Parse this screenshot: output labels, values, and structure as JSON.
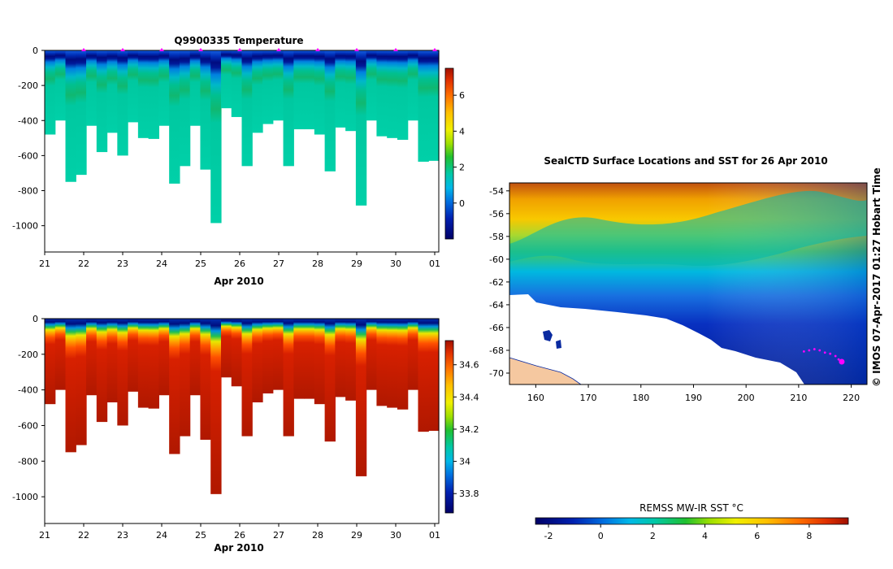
{
  "chart_data": [
    {
      "type": "heatmap",
      "title": "Q9900335  Temperature",
      "xlabel": "Apr 2010",
      "ylabel": "",
      "x_ticks": [
        "21",
        "22",
        "23",
        "24",
        "25",
        "26",
        "27",
        "28",
        "29",
        "30",
        "01"
      ],
      "y_ticks": [
        0,
        -200,
        -400,
        -600,
        -800,
        -1000
      ],
      "ylim": [
        -1150,
        0
      ],
      "colorbar": {
        "ticks": [
          6,
          4,
          2,
          0
        ],
        "labels": [
          "6",
          "4",
          "2",
          "0"
        ],
        "range": [
          -2,
          7.5
        ]
      },
      "profile_max_depths": [
        480,
        400,
        750,
        710,
        430,
        580,
        470,
        600,
        410,
        500,
        505,
        430,
        760,
        660,
        430,
        680,
        985,
        330,
        380,
        660,
        470,
        420,
        400,
        660,
        450,
        450,
        480,
        690,
        440,
        460,
        885,
        400,
        490,
        500,
        510,
        400,
        635,
        630
      ],
      "profile_markers_x": [
        22,
        23,
        24,
        25,
        26,
        27,
        28,
        29,
        30,
        31
      ]
    },
    {
      "type": "heatmap",
      "title": "",
      "xlabel": "Apr 2010",
      "ylabel": "",
      "x_ticks": [
        "21",
        "22",
        "23",
        "24",
        "25",
        "26",
        "27",
        "28",
        "29",
        "30",
        "01"
      ],
      "y_ticks": [
        0,
        -200,
        -400,
        -600,
        -800,
        -1000
      ],
      "ylim": [
        -1150,
        0
      ],
      "colorbar": {
        "ticks": [
          34.6,
          34.4,
          34.2,
          34,
          33.8
        ],
        "labels": [
          "34.6",
          "34.4",
          "34.2",
          "34",
          "33.8"
        ],
        "range": [
          33.68,
          34.75
        ]
      },
      "profile_max_depths": [
        480,
        400,
        750,
        710,
        430,
        580,
        470,
        600,
        410,
        500,
        505,
        430,
        760,
        660,
        430,
        680,
        985,
        330,
        380,
        660,
        470,
        420,
        400,
        660,
        450,
        450,
        480,
        690,
        440,
        460,
        885,
        400,
        490,
        500,
        510,
        400,
        635,
        630
      ]
    },
    {
      "type": "heatmap",
      "title": "SealCTD Surface Locations and SST for 26 Apr 2010",
      "xlabel": "",
      "ylabel": "",
      "x_ticks": [
        "160",
        "170",
        "180",
        "190",
        "200",
        "210",
        "220"
      ],
      "x_values": [
        160,
        170,
        180,
        190,
        200,
        210,
        220
      ],
      "xlim": [
        155,
        223
      ],
      "y_ticks": [
        "-54",
        "-56",
        "-58",
        "-60",
        "-62",
        "-64",
        "-66",
        "-68",
        "-70"
      ],
      "y_values": [
        -54,
        -56,
        -58,
        -60,
        -62,
        -64,
        -66,
        -68,
        -70
      ],
      "ylim": [
        -71,
        -53.3
      ],
      "colorbar_label": "REMSS MW-IR SST °C",
      "colorbar": {
        "ticks": [
          -2,
          0,
          2,
          4,
          6,
          8
        ],
        "labels": [
          "-2",
          "0",
          "2",
          "4",
          "6",
          "8"
        ],
        "range": [
          -2.5,
          9.5
        ]
      },
      "track_points": [
        [
          211,
          -68.1
        ],
        [
          212,
          -68.0
        ],
        [
          213,
          -67.9
        ],
        [
          214,
          -68.0
        ],
        [
          215,
          -68.2
        ],
        [
          216,
          -68.3
        ],
        [
          217,
          -68.5
        ],
        [
          217.6,
          -68.8
        ],
        [
          218.2,
          -69.0
        ]
      ]
    }
  ],
  "side_label": "© IMOS 07-Apr-2017 01:27 Hobart Time"
}
